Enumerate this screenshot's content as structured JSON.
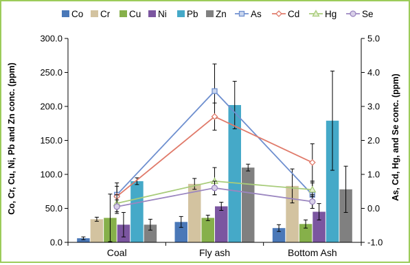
{
  "chart_data": {
    "type": "bar",
    "categories": [
      "Coal",
      "Fly ash",
      "Bottom Ash"
    ],
    "ylabel": "Co, Cr, Cu, Ni, Pb and Zn conc. (ppm)",
    "y2label": "As, Cd, Hg, and Se conc. (ppm)",
    "ylim": [
      0,
      300
    ],
    "y2lim": [
      -1,
      5
    ],
    "yticks": [
      "0.0",
      "50.0",
      "100.0",
      "150.0",
      "200.0",
      "250.0",
      "300.0"
    ],
    "y2ticks": [
      "-1.0",
      "0.0",
      "1.0",
      "2.0",
      "3.0",
      "4.0",
      "5.0"
    ],
    "grid": false,
    "legend_position": "top",
    "bar_series": [
      {
        "name": "Co",
        "color": "#4a78b8",
        "values": [
          6,
          30,
          21
        ],
        "errors": [
          2,
          8,
          5
        ]
      },
      {
        "name": "Cr",
        "color": "#d3c3a0",
        "values": [
          34,
          86,
          83
        ],
        "errors": [
          3,
          8,
          25
        ]
      },
      {
        "name": "Cu",
        "color": "#86b04a",
        "values": [
          36,
          36,
          27
        ],
        "errors": [
          35,
          4,
          6
        ]
      },
      {
        "name": "Ni",
        "color": "#7b56a0",
        "values": [
          26,
          53,
          45
        ],
        "errors": [
          18,
          6,
          12
        ]
      },
      {
        "name": "Pb",
        "color": "#45a9c8",
        "values": [
          90,
          202,
          179
        ],
        "errors": [
          5,
          35,
          73
        ]
      },
      {
        "name": "Zn",
        "color": "#808080",
        "values": [
          26,
          110,
          78
        ],
        "errors": [
          8,
          5,
          34
        ]
      }
    ],
    "line_series": [
      {
        "name": "As",
        "color": "#6e8fcf",
        "marker": "square",
        "values": [
          0.4,
          3.45,
          0.4
        ],
        "errors": [
          0.35,
          0.8,
          0.4
        ]
      },
      {
        "name": "Cd",
        "color": "#e07a6a",
        "marker": "diamond",
        "values": [
          0.35,
          2.7,
          1.35
        ],
        "errors": [
          0.3,
          0.4,
          0.55
        ]
      },
      {
        "name": "Hg",
        "color": "#a8cc7a",
        "marker": "triangle",
        "values": [
          0.15,
          0.8,
          0.55
        ],
        "errors": [
          0.25,
          0.4,
          0.2
        ]
      },
      {
        "name": "Se",
        "color": "#9b86c0",
        "marker": "circle",
        "values": [
          0.05,
          0.6,
          0.2
        ],
        "errors": [
          0.2,
          0.2,
          0.2
        ]
      }
    ]
  }
}
